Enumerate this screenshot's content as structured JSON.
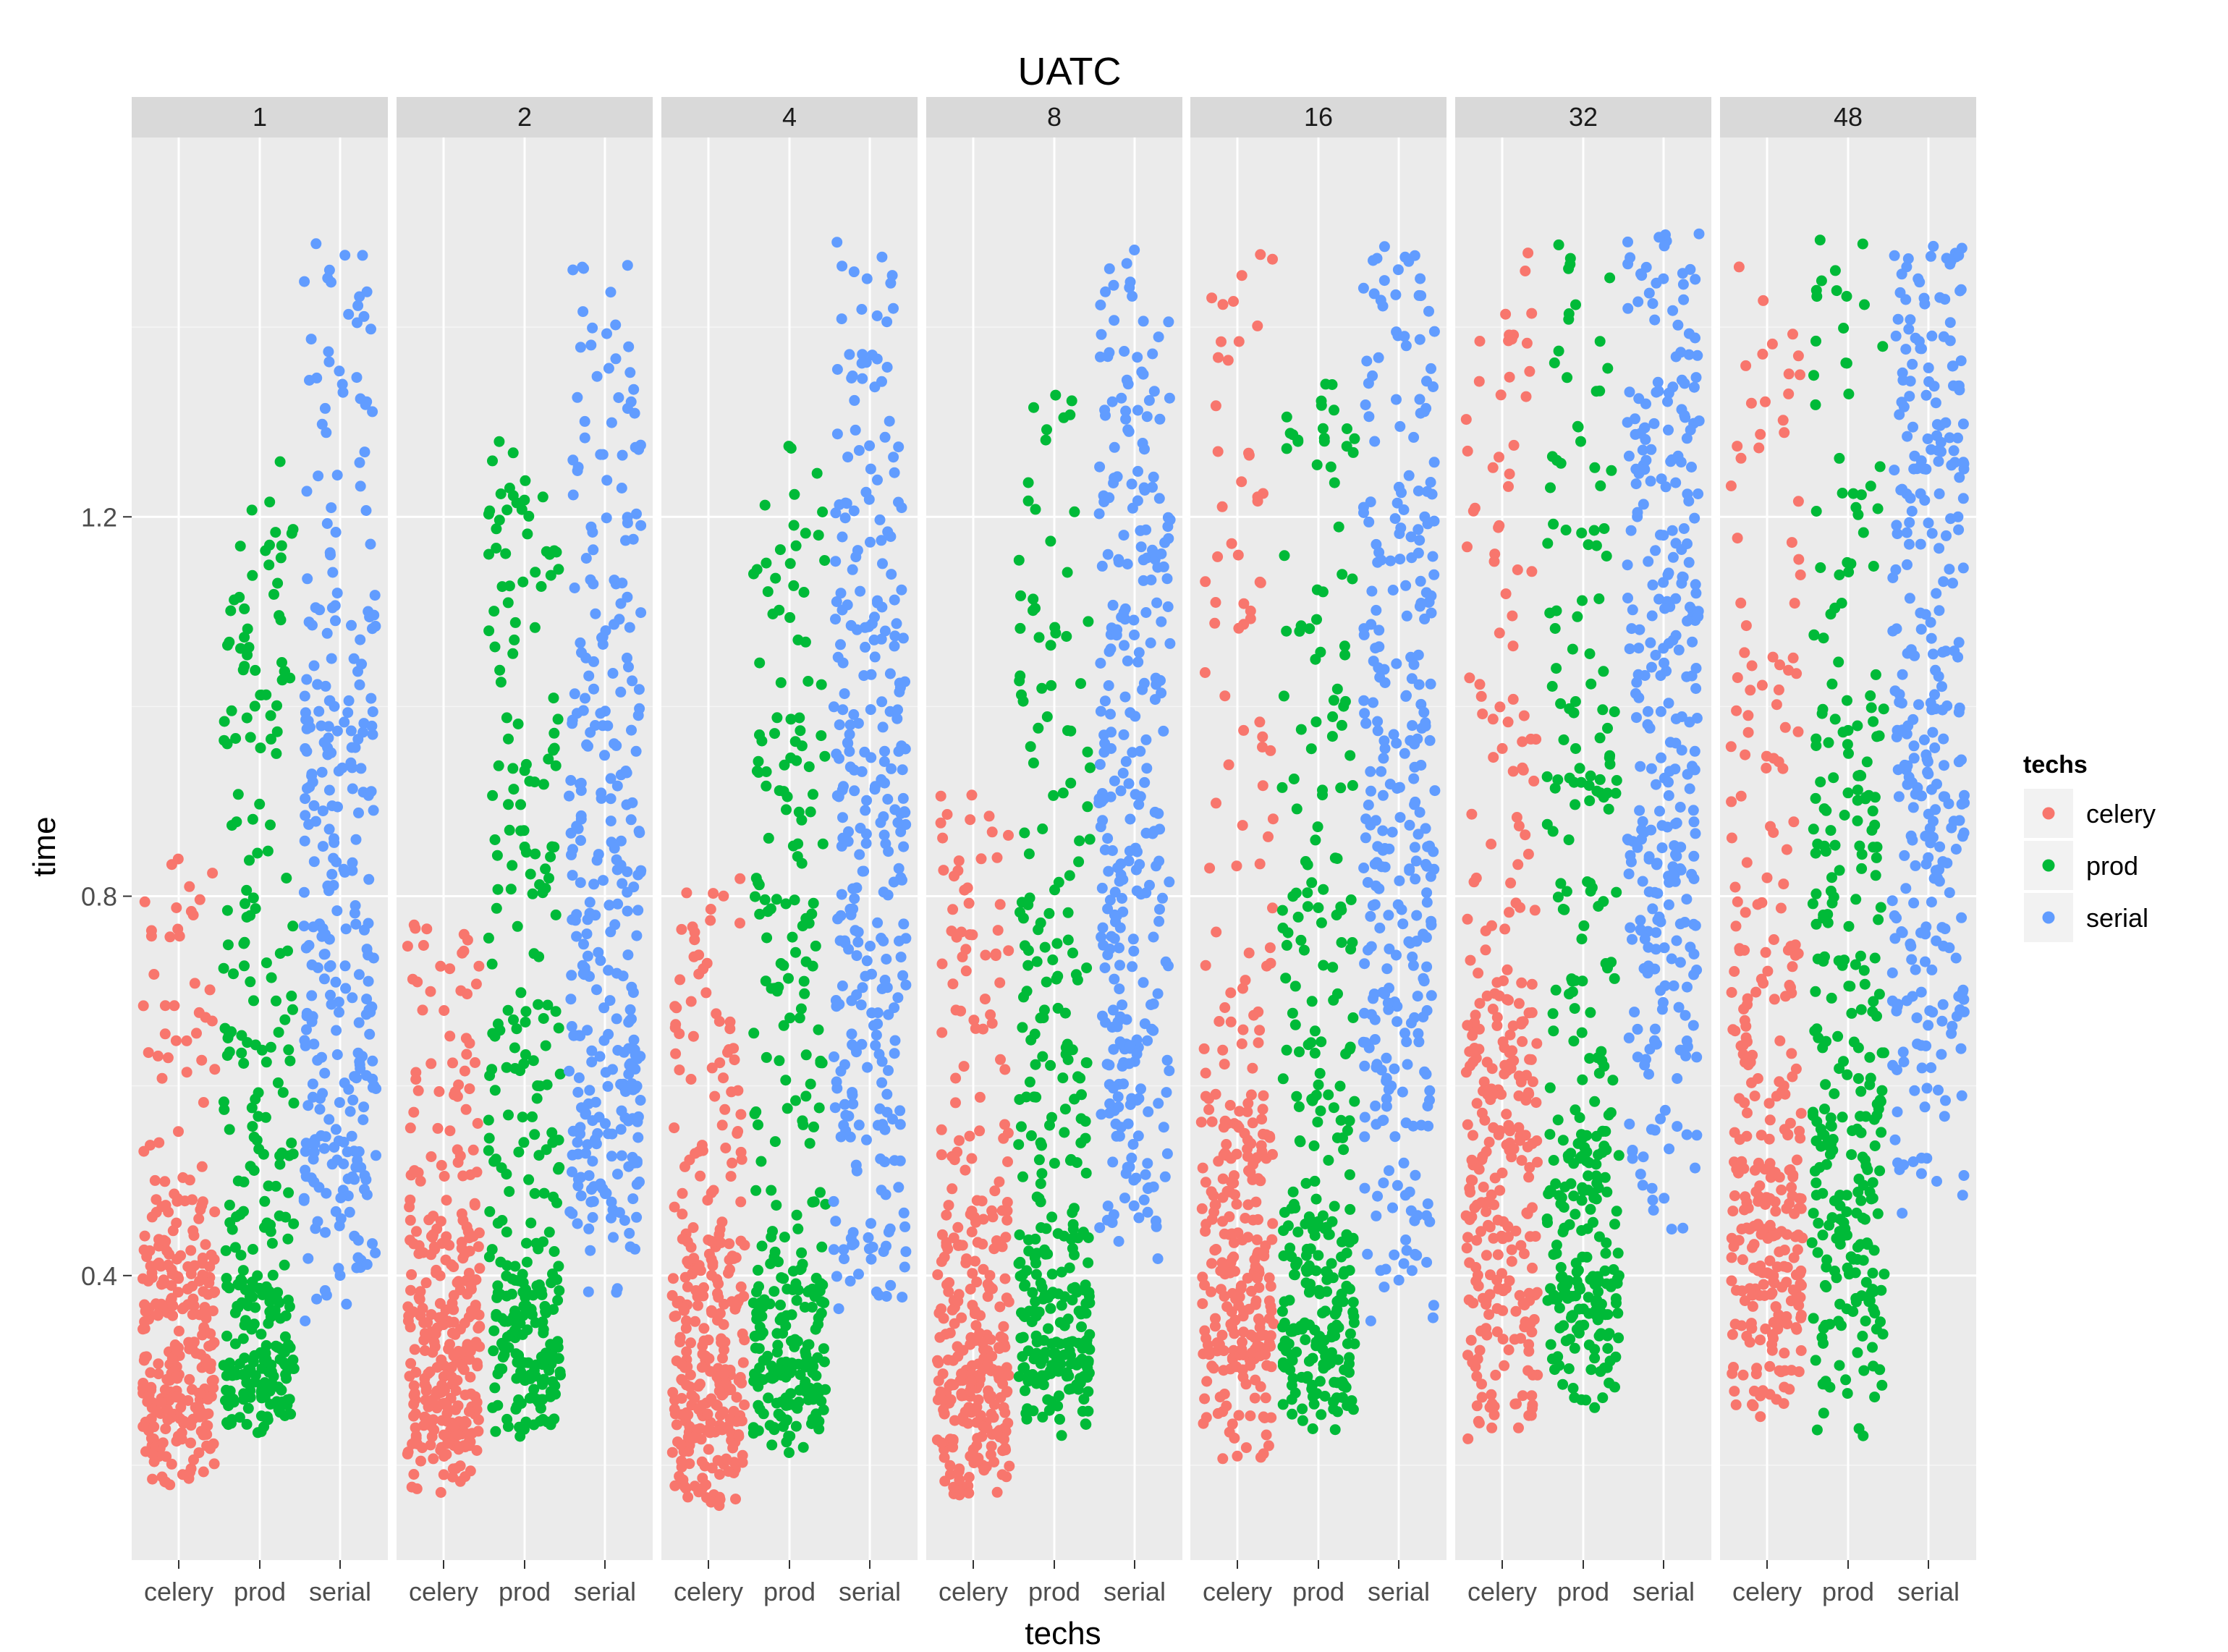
{
  "chart_data": {
    "type": "scatter",
    "title": "UATC",
    "xlabel": "techs",
    "ylabel": "time",
    "facet_variable_values": [
      "1",
      "2",
      "4",
      "8",
      "16",
      "32",
      "48"
    ],
    "categories": [
      "celery",
      "prod",
      "serial"
    ],
    "ylim": [
      0.1,
      1.6
    ],
    "yticks": [
      "0.4",
      "0.8",
      "1.2"
    ],
    "ytick_values": [
      0.4,
      0.8,
      1.2
    ],
    "jitter": true,
    "grid": true,
    "legend": {
      "title": "techs",
      "position": "right",
      "entries": [
        "celery",
        "prod",
        "serial"
      ]
    },
    "colors": {
      "celery": "#F8766D",
      "prod": "#00BA38",
      "serial": "#619CFF"
    },
    "point_counts_per_group": 300,
    "series_distributions": [
      {
        "facet": "1",
        "celery": {
          "min": 0.17,
          "q1": 0.26,
          "median": 0.33,
          "q3": 0.43,
          "max": 0.85
        },
        "prod": {
          "min": 0.23,
          "q1": 0.31,
          "median": 0.4,
          "q3": 0.75,
          "max": 1.27
        },
        "serial": {
          "min": 0.33,
          "q1": 0.58,
          "median": 0.78,
          "q3": 1.0,
          "max": 1.49
        }
      },
      {
        "facet": "2",
        "celery": {
          "min": 0.17,
          "q1": 0.27,
          "median": 0.34,
          "q3": 0.44,
          "max": 0.79
        },
        "prod": {
          "min": 0.22,
          "q1": 0.31,
          "median": 0.4,
          "q3": 0.78,
          "max": 1.28
        },
        "serial": {
          "min": 0.37,
          "q1": 0.6,
          "median": 0.8,
          "q3": 1.05,
          "max": 1.47
        }
      },
      {
        "facet": "4",
        "celery": {
          "min": 0.15,
          "q1": 0.26,
          "median": 0.33,
          "q3": 0.44,
          "max": 0.82
        },
        "prod": {
          "min": 0.21,
          "q1": 0.31,
          "median": 0.41,
          "q3": 0.78,
          "max": 1.28
        },
        "serial": {
          "min": 0.34,
          "q1": 0.62,
          "median": 0.85,
          "q3": 1.08,
          "max": 1.5
        }
      },
      {
        "facet": "8",
        "celery": {
          "min": 0.16,
          "q1": 0.27,
          "median": 0.34,
          "q3": 0.46,
          "max": 0.93
        },
        "prod": {
          "min": 0.23,
          "q1": 0.33,
          "median": 0.45,
          "q3": 0.75,
          "max": 1.36
        },
        "serial": {
          "min": 0.4,
          "q1": 0.65,
          "median": 0.88,
          "q3": 1.13,
          "max": 1.49
        }
      },
      {
        "facet": "16",
        "celery": {
          "min": 0.2,
          "q1": 0.33,
          "median": 0.43,
          "q3": 0.58,
          "max": 1.48
        },
        "prod": {
          "min": 0.23,
          "q1": 0.35,
          "median": 0.46,
          "q3": 0.78,
          "max": 1.35
        },
        "serial": {
          "min": 0.34,
          "q1": 0.68,
          "median": 0.93,
          "q3": 1.16,
          "max": 1.49
        }
      },
      {
        "facet": "32",
        "celery": {
          "min": 0.22,
          "q1": 0.4,
          "median": 0.55,
          "q3": 0.72,
          "max": 1.48
        },
        "prod": {
          "min": 0.25,
          "q1": 0.4,
          "median": 0.55,
          "q3": 0.92,
          "max": 1.49
        },
        "serial": {
          "min": 0.44,
          "q1": 0.78,
          "median": 1.02,
          "q3": 1.25,
          "max": 1.5
        }
      },
      {
        "facet": "48",
        "celery": {
          "min": 0.24,
          "q1": 0.4,
          "median": 0.52,
          "q3": 0.78,
          "max": 1.48
        },
        "prod": {
          "min": 0.23,
          "q1": 0.42,
          "median": 0.58,
          "q3": 0.95,
          "max": 1.5
        },
        "serial": {
          "min": 0.45,
          "q1": 0.8,
          "median": 1.0,
          "q3": 1.25,
          "max": 1.49
        }
      }
    ]
  }
}
